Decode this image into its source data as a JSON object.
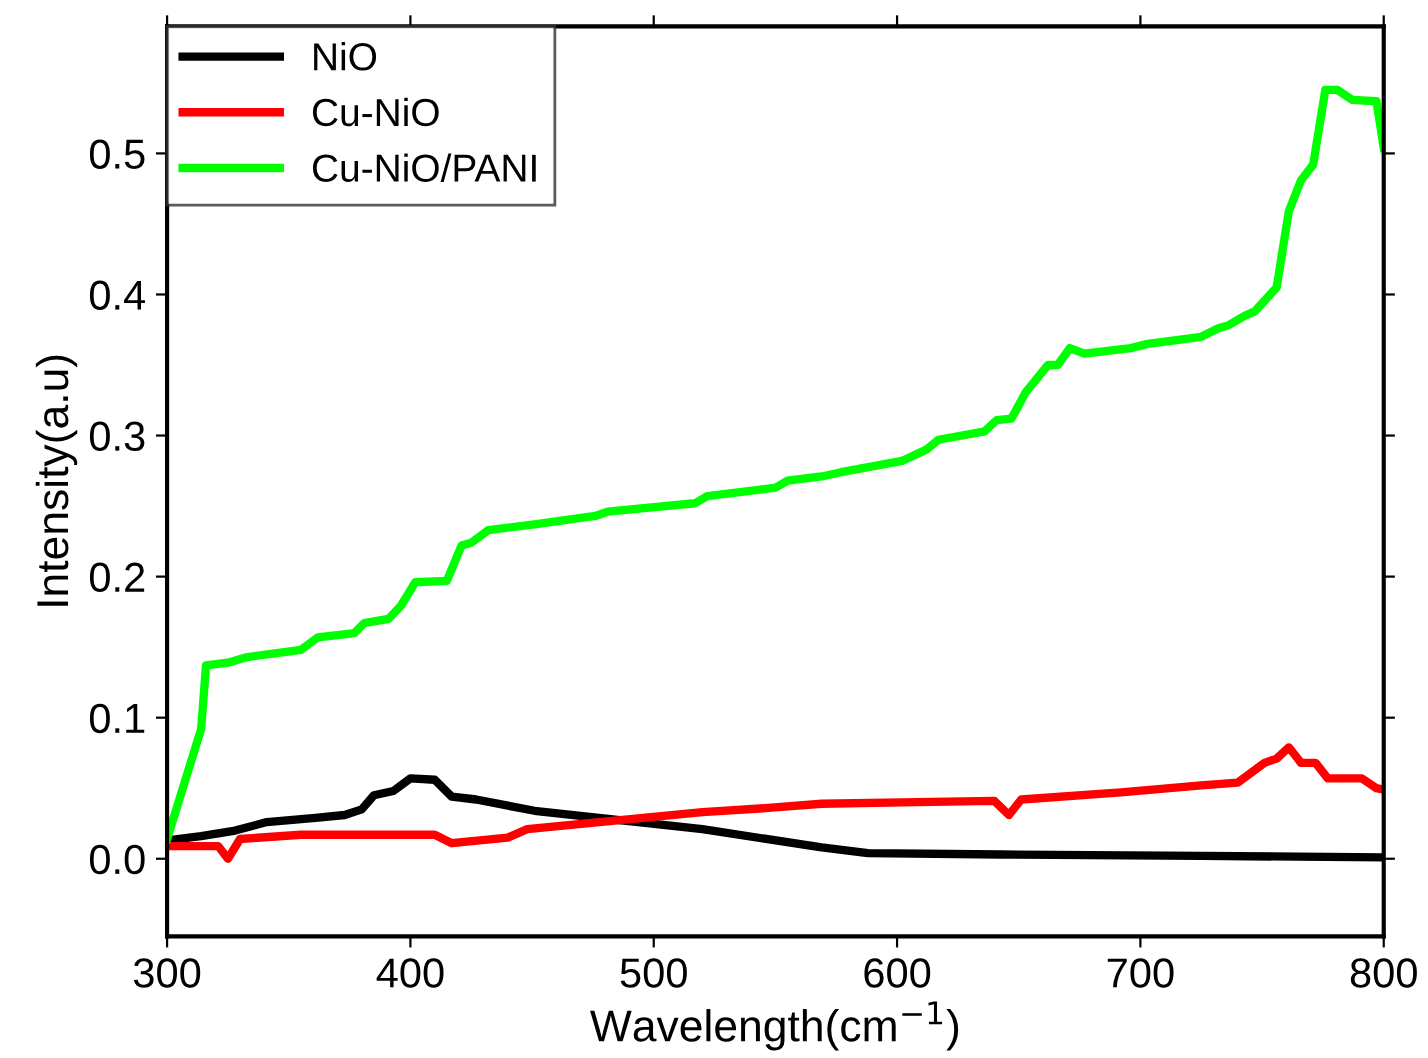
{
  "chart_data": {
    "type": "line",
    "xlabel": "Wavelength(cm$^{−1}$)",
    "ylabel": "Intensity(a.u)",
    "xlim": [
      300,
      800
    ],
    "ylim": [
      -0.055,
      0.59
    ],
    "xticks": [
      300,
      400,
      500,
      600,
      700,
      800
    ],
    "yticks": [
      {
        "value": 0,
        "label": "0.0"
      },
      0.1,
      0.2,
      0.3,
      0.4,
      0.5
    ],
    "grid": false,
    "legend": "top left",
    "marker": "none",
    "line_style": "solid",
    "series": [
      {
        "name": "NiO",
        "color": "#000000",
        "x": [
          300,
          314,
          328,
          341,
          361,
          373,
          380,
          385,
          393,
          400,
          410,
          417,
          427,
          451,
          520,
          569,
          588,
          643,
          725,
          800
        ],
        "values": [
          0.013,
          0.016,
          0.02,
          0.026,
          0.029,
          0.031,
          0.035,
          0.045,
          0.048,
          0.057,
          0.056,
          0.044,
          0.042,
          0.034,
          0.021,
          0.008,
          0.004,
          0.003,
          0.002,
          0.001
        ]
      },
      {
        "name": "Cu-NiO",
        "color": "#ff0000",
        "x": [
          300,
          321,
          325,
          330,
          355,
          410,
          417,
          440,
          448,
          484,
          520,
          547,
          569,
          602,
          640,
          646,
          651,
          692,
          725,
          740,
          751,
          756,
          761,
          766,
          772,
          777,
          791,
          797,
          800
        ],
        "values": [
          0.009,
          0.009,
          0.0,
          0.014,
          0.017,
          0.017,
          0.011,
          0.015,
          0.021,
          0.027,
          0.033,
          0.036,
          0.039,
          0.04,
          0.041,
          0.031,
          0.042,
          0.047,
          0.052,
          0.054,
          0.068,
          0.071,
          0.079,
          0.068,
          0.068,
          0.057,
          0.057,
          0.05,
          0.049
        ]
      },
      {
        "name": "Cu-NiO/PANI",
        "color": "#00ff00",
        "x": [
          300,
          314,
          316,
          325,
          333,
          355,
          362,
          377,
          381,
          391,
          396,
          402,
          415,
          421,
          425,
          432,
          451,
          476,
          481,
          517,
          522,
          550,
          555,
          569,
          577,
          602,
          612,
          617,
          636,
          641,
          647,
          653,
          662,
          666,
          671,
          677,
          696,
          703,
          725,
          732,
          736,
          743,
          747,
          756,
          761,
          766,
          771,
          776,
          781,
          787,
          797,
          800
        ],
        "values": [
          0.014,
          0.092,
          0.137,
          0.139,
          0.143,
          0.148,
          0.157,
          0.16,
          0.167,
          0.17,
          0.179,
          0.196,
          0.197,
          0.222,
          0.224,
          0.233,
          0.237,
          0.243,
          0.246,
          0.252,
          0.257,
          0.263,
          0.268,
          0.271,
          0.274,
          0.282,
          0.29,
          0.297,
          0.303,
          0.311,
          0.312,
          0.331,
          0.35,
          0.35,
          0.362,
          0.358,
          0.362,
          0.365,
          0.37,
          0.376,
          0.378,
          0.385,
          0.388,
          0.405,
          0.459,
          0.481,
          0.492,
          0.545,
          0.545,
          0.538,
          0.537,
          0.504
        ]
      }
    ]
  }
}
